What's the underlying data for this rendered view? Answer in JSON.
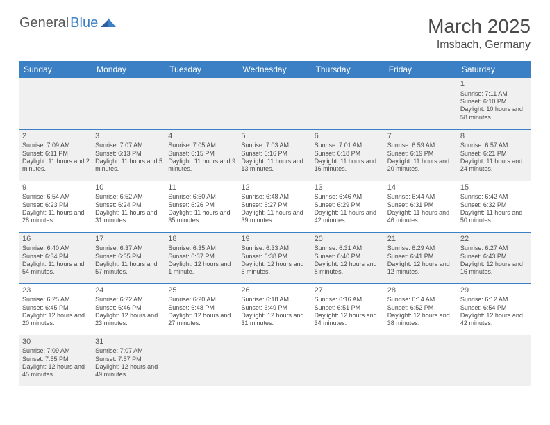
{
  "logo": {
    "text1": "General",
    "text2": "Blue"
  },
  "title": "March 2025",
  "location": "Imsbach, Germany",
  "header_bg": "#3b7fc4",
  "header_fg": "#ffffff",
  "alt_row_bg": "#f0f0f0",
  "border_color": "#3b7fc4",
  "text_color": "#4a4a4a",
  "body_font_size_pt": 7,
  "header_font_size_pt": 9,
  "title_font_size_pt": 21,
  "days": [
    "Sunday",
    "Monday",
    "Tuesday",
    "Wednesday",
    "Thursday",
    "Friday",
    "Saturday"
  ],
  "weeks": [
    [
      null,
      null,
      null,
      null,
      null,
      null,
      {
        "n": "1",
        "sr": "Sunrise: 7:11 AM",
        "ss": "Sunset: 6:10 PM",
        "dl": "Daylight: 10 hours and 58 minutes."
      }
    ],
    [
      {
        "n": "2",
        "sr": "Sunrise: 7:09 AM",
        "ss": "Sunset: 6:11 PM",
        "dl": "Daylight: 11 hours and 2 minutes."
      },
      {
        "n": "3",
        "sr": "Sunrise: 7:07 AM",
        "ss": "Sunset: 6:13 PM",
        "dl": "Daylight: 11 hours and 5 minutes."
      },
      {
        "n": "4",
        "sr": "Sunrise: 7:05 AM",
        "ss": "Sunset: 6:15 PM",
        "dl": "Daylight: 11 hours and 9 minutes."
      },
      {
        "n": "5",
        "sr": "Sunrise: 7:03 AM",
        "ss": "Sunset: 6:16 PM",
        "dl": "Daylight: 11 hours and 13 minutes."
      },
      {
        "n": "6",
        "sr": "Sunrise: 7:01 AM",
        "ss": "Sunset: 6:18 PM",
        "dl": "Daylight: 11 hours and 16 minutes."
      },
      {
        "n": "7",
        "sr": "Sunrise: 6:59 AM",
        "ss": "Sunset: 6:19 PM",
        "dl": "Daylight: 11 hours and 20 minutes."
      },
      {
        "n": "8",
        "sr": "Sunrise: 6:57 AM",
        "ss": "Sunset: 6:21 PM",
        "dl": "Daylight: 11 hours and 24 minutes."
      }
    ],
    [
      {
        "n": "9",
        "sr": "Sunrise: 6:54 AM",
        "ss": "Sunset: 6:23 PM",
        "dl": "Daylight: 11 hours and 28 minutes."
      },
      {
        "n": "10",
        "sr": "Sunrise: 6:52 AM",
        "ss": "Sunset: 6:24 PM",
        "dl": "Daylight: 11 hours and 31 minutes."
      },
      {
        "n": "11",
        "sr": "Sunrise: 6:50 AM",
        "ss": "Sunset: 6:26 PM",
        "dl": "Daylight: 11 hours and 35 minutes."
      },
      {
        "n": "12",
        "sr": "Sunrise: 6:48 AM",
        "ss": "Sunset: 6:27 PM",
        "dl": "Daylight: 11 hours and 39 minutes."
      },
      {
        "n": "13",
        "sr": "Sunrise: 6:46 AM",
        "ss": "Sunset: 6:29 PM",
        "dl": "Daylight: 11 hours and 42 minutes."
      },
      {
        "n": "14",
        "sr": "Sunrise: 6:44 AM",
        "ss": "Sunset: 6:31 PM",
        "dl": "Daylight: 11 hours and 46 minutes."
      },
      {
        "n": "15",
        "sr": "Sunrise: 6:42 AM",
        "ss": "Sunset: 6:32 PM",
        "dl": "Daylight: 11 hours and 50 minutes."
      }
    ],
    [
      {
        "n": "16",
        "sr": "Sunrise: 6:40 AM",
        "ss": "Sunset: 6:34 PM",
        "dl": "Daylight: 11 hours and 54 minutes."
      },
      {
        "n": "17",
        "sr": "Sunrise: 6:37 AM",
        "ss": "Sunset: 6:35 PM",
        "dl": "Daylight: 11 hours and 57 minutes."
      },
      {
        "n": "18",
        "sr": "Sunrise: 6:35 AM",
        "ss": "Sunset: 6:37 PM",
        "dl": "Daylight: 12 hours and 1 minute."
      },
      {
        "n": "19",
        "sr": "Sunrise: 6:33 AM",
        "ss": "Sunset: 6:38 PM",
        "dl": "Daylight: 12 hours and 5 minutes."
      },
      {
        "n": "20",
        "sr": "Sunrise: 6:31 AM",
        "ss": "Sunset: 6:40 PM",
        "dl": "Daylight: 12 hours and 8 minutes."
      },
      {
        "n": "21",
        "sr": "Sunrise: 6:29 AM",
        "ss": "Sunset: 6:41 PM",
        "dl": "Daylight: 12 hours and 12 minutes."
      },
      {
        "n": "22",
        "sr": "Sunrise: 6:27 AM",
        "ss": "Sunset: 6:43 PM",
        "dl": "Daylight: 12 hours and 16 minutes."
      }
    ],
    [
      {
        "n": "23",
        "sr": "Sunrise: 6:25 AM",
        "ss": "Sunset: 6:45 PM",
        "dl": "Daylight: 12 hours and 20 minutes."
      },
      {
        "n": "24",
        "sr": "Sunrise: 6:22 AM",
        "ss": "Sunset: 6:46 PM",
        "dl": "Daylight: 12 hours and 23 minutes."
      },
      {
        "n": "25",
        "sr": "Sunrise: 6:20 AM",
        "ss": "Sunset: 6:48 PM",
        "dl": "Daylight: 12 hours and 27 minutes."
      },
      {
        "n": "26",
        "sr": "Sunrise: 6:18 AM",
        "ss": "Sunset: 6:49 PM",
        "dl": "Daylight: 12 hours and 31 minutes."
      },
      {
        "n": "27",
        "sr": "Sunrise: 6:16 AM",
        "ss": "Sunset: 6:51 PM",
        "dl": "Daylight: 12 hours and 34 minutes."
      },
      {
        "n": "28",
        "sr": "Sunrise: 6:14 AM",
        "ss": "Sunset: 6:52 PM",
        "dl": "Daylight: 12 hours and 38 minutes."
      },
      {
        "n": "29",
        "sr": "Sunrise: 6:12 AM",
        "ss": "Sunset: 6:54 PM",
        "dl": "Daylight: 12 hours and 42 minutes."
      }
    ],
    [
      {
        "n": "30",
        "sr": "Sunrise: 7:09 AM",
        "ss": "Sunset: 7:55 PM",
        "dl": "Daylight: 12 hours and 45 minutes."
      },
      {
        "n": "31",
        "sr": "Sunrise: 7:07 AM",
        "ss": "Sunset: 7:57 PM",
        "dl": "Daylight: 12 hours and 49 minutes."
      },
      null,
      null,
      null,
      null,
      null
    ]
  ]
}
